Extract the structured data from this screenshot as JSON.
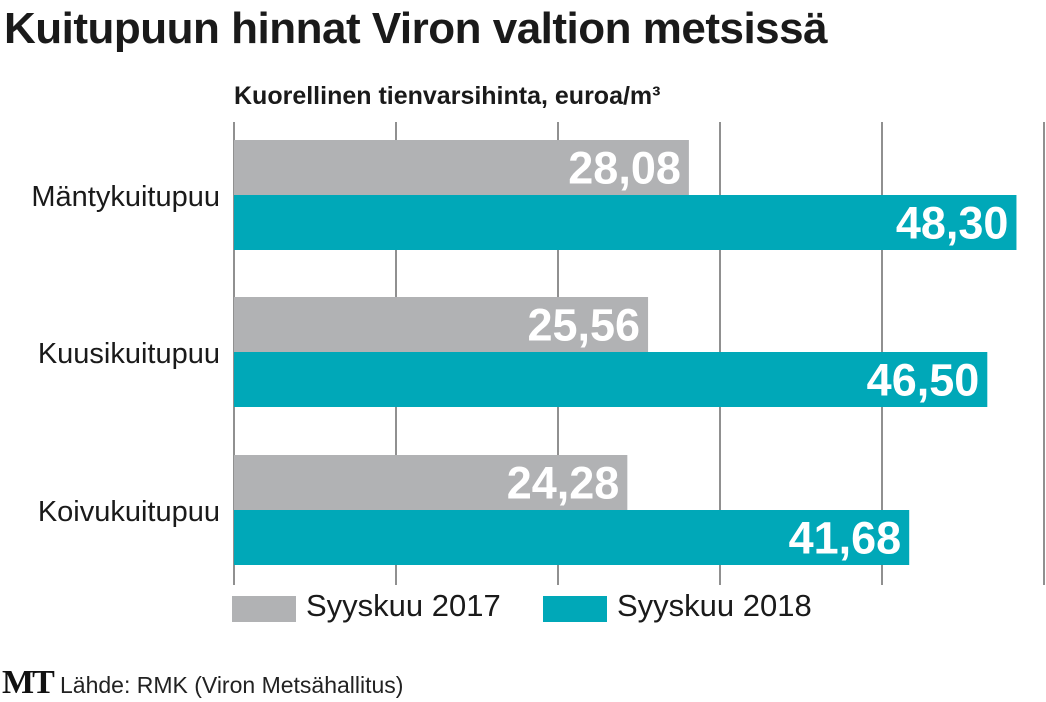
{
  "title": "Kuitupuun hinnat Viron valtion metsissä",
  "subtitle": "Kuorellinen tienvarsihinta, euroa/m³",
  "source": "Lähde: RMK (Viron Metsähallitus)",
  "logo_text": "MT",
  "chart_data": {
    "type": "bar",
    "orientation": "horizontal",
    "title": "Kuitupuun hinnat Viron valtion metsissä",
    "subtitle": "Kuorellinen tienvarsihinta, euroa/m³",
    "categories": [
      "Mäntykuitupuu",
      "Kuusikuitupuu",
      "Koivukuitupuu"
    ],
    "series": [
      {
        "name": "Syyskuu 2017",
        "color": "#b1b2b4",
        "values": [
          28.08,
          25.56,
          24.28
        ],
        "labels": [
          "28,08",
          "25,56",
          "24,28"
        ]
      },
      {
        "name": "Syyskuu 2018",
        "color": "#00a8b8",
        "values": [
          48.3,
          46.5,
          41.68
        ],
        "labels": [
          "48,30",
          "46,50",
          "41,68"
        ]
      }
    ],
    "xlim": [
      0,
      50
    ],
    "grid_step": 10,
    "grid": true,
    "legend": "bottom",
    "label_color": "#ffffff"
  }
}
